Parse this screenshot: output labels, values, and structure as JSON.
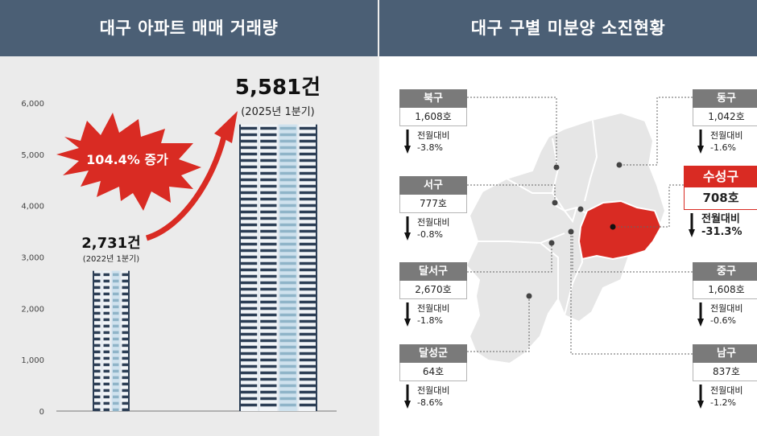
{
  "left_title": "대구 아파트 매매 거래량",
  "right_title": "대구 구별 미분양 소진현황",
  "chart_data": [
    {
      "type": "bar",
      "title": "대구 아파트 매매 거래량",
      "categories": [
        "2022년 1분기",
        "2025년 1분기"
      ],
      "values": [
        2731,
        5581
      ],
      "value_labels": [
        "2,731건",
        "5,581건"
      ],
      "category_labels": [
        "(2022년 1분기)",
        "(2025년 1분기)"
      ],
      "y_ticks": [
        "6,000",
        "5,000",
        "4,000",
        "3,000",
        "2,000",
        "1,000",
        "0"
      ],
      "ylim": [
        0,
        6000
      ],
      "annotation": "104.4% 증가",
      "grid": false
    },
    {
      "type": "table",
      "title": "대구 구별 미분양 소진현황",
      "change_label": "전월대비",
      "districts": [
        {
          "name": "북구",
          "units": "1,608호",
          "change": "-3.8%"
        },
        {
          "name": "서구",
          "units": "777호",
          "change": "-0.8%"
        },
        {
          "name": "달서구",
          "units": "2,670호",
          "change": "-1.8%"
        },
        {
          "name": "달성군",
          "units": "64호",
          "change": "-8.6%"
        },
        {
          "name": "동구",
          "units": "1,042호",
          "change": "-1.6%"
        },
        {
          "name": "수성구",
          "units": "708호",
          "change": "-31.3%"
        },
        {
          "name": "중구",
          "units": "1,608호",
          "change": "-0.6%"
        },
        {
          "name": "남구",
          "units": "837호",
          "change": "-1.2%"
        }
      ],
      "highlight": "수성구",
      "highlight_color": "#d92b23"
    }
  ]
}
